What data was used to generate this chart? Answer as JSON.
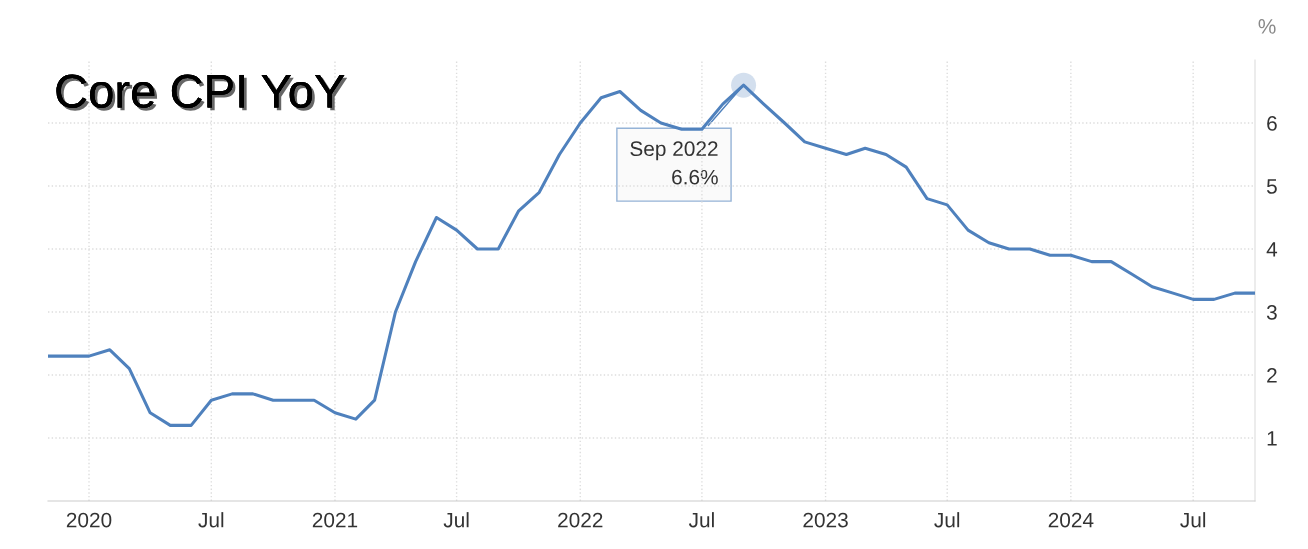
{
  "chart_data": {
    "type": "line",
    "title": "Core CPI YoY",
    "ylabel": "%",
    "x": [
      "2019-11",
      "2019-12",
      "2020-01",
      "2020-02",
      "2020-03",
      "2020-04",
      "2020-05",
      "2020-06",
      "2020-07",
      "2020-08",
      "2020-09",
      "2020-10",
      "2020-11",
      "2020-12",
      "2021-01",
      "2021-02",
      "2021-03",
      "2021-04",
      "2021-05",
      "2021-06",
      "2021-07",
      "2021-08",
      "2021-09",
      "2021-10",
      "2021-11",
      "2021-12",
      "2022-01",
      "2022-02",
      "2022-03",
      "2022-04",
      "2022-05",
      "2022-06",
      "2022-07",
      "2022-08",
      "2022-09",
      "2022-10",
      "2022-11",
      "2022-12",
      "2023-01",
      "2023-02",
      "2023-03",
      "2023-04",
      "2023-05",
      "2023-06",
      "2023-07",
      "2023-08",
      "2023-09",
      "2023-10",
      "2023-11",
      "2023-12",
      "2024-01",
      "2024-02",
      "2024-03",
      "2024-04",
      "2024-05",
      "2024-06",
      "2024-07",
      "2024-08",
      "2024-09",
      "2024-10"
    ],
    "series": [
      {
        "color": "#4f81bd",
        "values": [
          2.3,
          2.3,
          2.3,
          2.4,
          2.1,
          1.4,
          1.2,
          1.2,
          1.6,
          1.7,
          1.7,
          1.6,
          1.6,
          1.6,
          1.4,
          1.3,
          1.6,
          3.0,
          3.8,
          4.5,
          4.3,
          4.0,
          4.0,
          4.6,
          4.9,
          5.5,
          6.0,
          6.4,
          6.5,
          6.2,
          6.0,
          5.9,
          5.9,
          6.3,
          6.6,
          6.3,
          6.0,
          5.7,
          5.6,
          5.5,
          5.6,
          5.5,
          5.3,
          4.8,
          4.7,
          4.3,
          4.1,
          4.0,
          4.0,
          3.9,
          3.9,
          3.8,
          3.8,
          3.6,
          3.4,
          3.3,
          3.2,
          3.2,
          3.3,
          3.3
        ]
      }
    ],
    "annotations": [
      {
        "text": "Sep 2022\n6.6%",
        "x": "2022-09",
        "y": 6.6
      }
    ],
    "xlim": [
      "2019-11",
      "2024-10"
    ],
    "xticks": [
      {
        "value": "2020-01",
        "label": "2020"
      },
      {
        "value": "2020-07",
        "label": "Jul"
      },
      {
        "value": "2021-01",
        "label": "2021"
      },
      {
        "value": "2021-07",
        "label": "Jul"
      },
      {
        "value": "2022-01",
        "label": "2022"
      },
      {
        "value": "2022-07",
        "label": "Jul"
      },
      {
        "value": "2023-01",
        "label": "2023"
      },
      {
        "value": "2023-07",
        "label": "Jul"
      },
      {
        "value": "2024-01",
        "label": "2024"
      },
      {
        "value": "2024-07",
        "label": "Jul"
      }
    ],
    "ylim": [
      0,
      7
    ],
    "yticks": [
      1,
      2,
      3,
      4,
      5,
      6
    ],
    "grid": true,
    "marker": "none",
    "line_style": "solid"
  }
}
